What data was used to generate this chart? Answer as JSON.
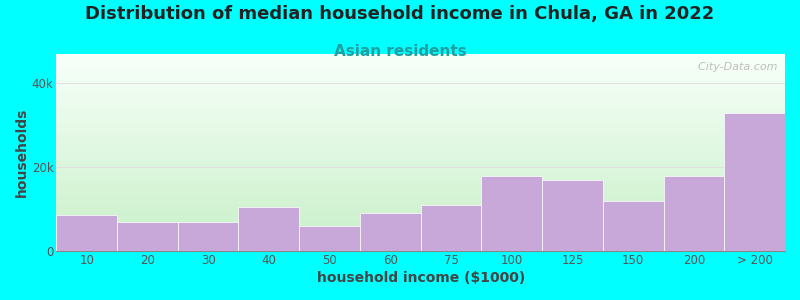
{
  "title": "Distribution of median household income in Chula, GA in 2022",
  "subtitle": "Asian residents",
  "xlabel": "household income ($1000)",
  "ylabel": "households",
  "background_color": "#00FFFF",
  "bar_color": "#C8A8D8",
  "categories": [
    "10",
    "20",
    "30",
    "40",
    "50",
    "60",
    "75",
    "100",
    "125",
    "150",
    "200",
    "> 200"
  ],
  "values": [
    8500,
    7000,
    7000,
    10500,
    6000,
    9000,
    11000,
    18000,
    17000,
    12000,
    18000,
    33000
  ],
  "bar_widths": [
    1,
    1,
    1,
    1,
    1,
    1,
    1,
    1,
    1,
    1,
    1,
    1
  ],
  "yticks": [
    0,
    20000,
    40000
  ],
  "ytick_labels": [
    "0",
    "20k",
    "40k"
  ],
  "ylim": [
    0,
    47000
  ],
  "title_fontsize": 13,
  "subtitle_fontsize": 11,
  "axis_label_fontsize": 10,
  "tick_fontsize": 8.5,
  "watermark": "  City-Data.com",
  "subtitle_color": "#20a0a0",
  "title_color": "#222222",
  "axis_label_color": "#444444",
  "tick_color": "#555555",
  "grid_color": "#e0e0e0",
  "gradient_bottom": "#c8f0c8",
  "gradient_top": "#f8fffa"
}
